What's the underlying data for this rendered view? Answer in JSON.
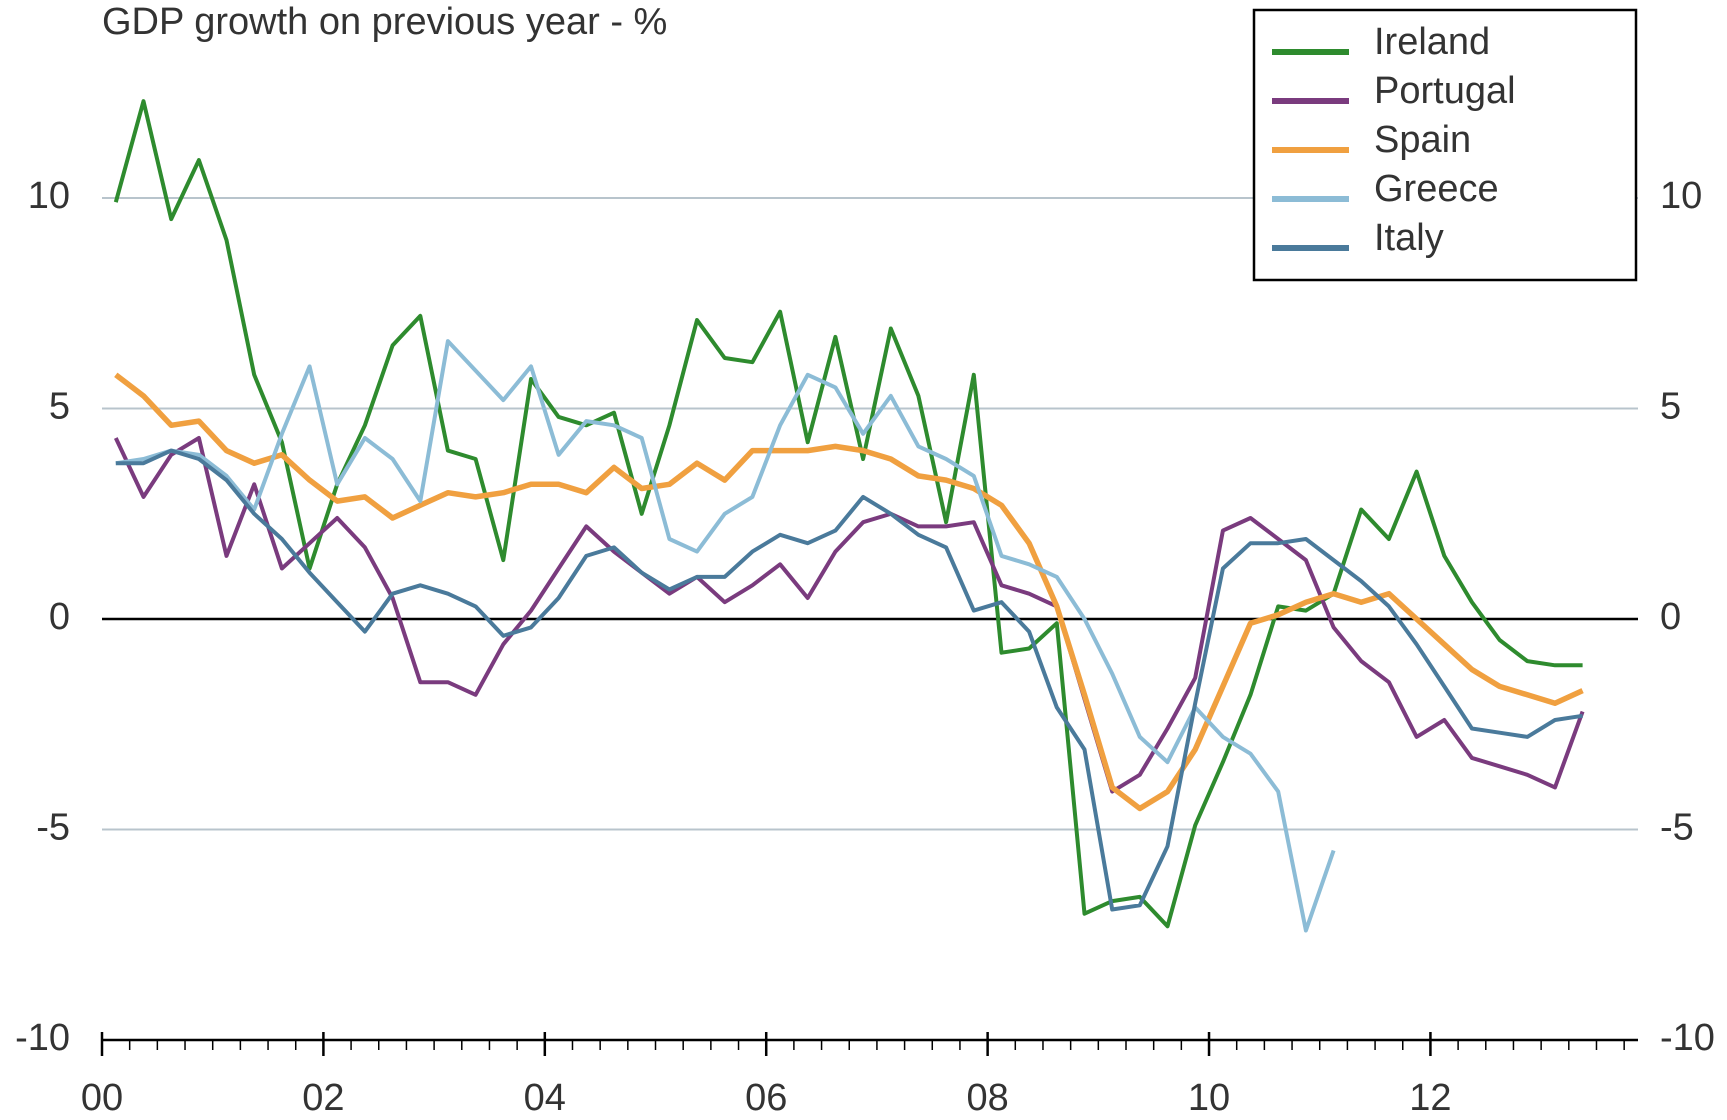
{
  "chart_data": {
    "type": "line",
    "title": "GDP growth on previous year - %",
    "x": [
      2000.125,
      2000.375,
      2000.625,
      2000.875,
      2001.125,
      2001.375,
      2001.625,
      2001.875,
      2002.125,
      2002.375,
      2002.625,
      2002.875,
      2003.125,
      2003.375,
      2003.625,
      2003.875,
      2004.125,
      2004.375,
      2004.625,
      2004.875,
      2005.125,
      2005.375,
      2005.625,
      2005.875,
      2006.125,
      2006.375,
      2006.625,
      2006.875,
      2007.125,
      2007.375,
      2007.625,
      2007.875,
      2008.125,
      2008.375,
      2008.625,
      2008.875,
      2009.125,
      2009.375,
      2009.625,
      2009.875,
      2010.125,
      2010.375,
      2010.625,
      2010.875,
      2011.125,
      2011.375,
      2011.625,
      2011.875,
      2012.125,
      2012.375,
      2012.625,
      2012.875,
      2013.125,
      2013.375
    ],
    "series": [
      {
        "name": "Ireland",
        "color": "#2e8b2e",
        "values": [
          9.9,
          12.3,
          9.5,
          10.9,
          9.0,
          5.8,
          4.2,
          1.2,
          3.2,
          4.6,
          6.5,
          7.2,
          4.0,
          3.8,
          1.4,
          5.7,
          4.8,
          4.6,
          4.9,
          2.5,
          4.6,
          7.1,
          6.2,
          6.1,
          7.3,
          4.2,
          6.7,
          3.8,
          6.9,
          5.3,
          2.3,
          5.8,
          -0.8,
          -0.7,
          -0.1,
          -7.0,
          -6.7,
          -6.6,
          -7.3,
          -4.9,
          -3.4,
          -1.8,
          0.3,
          0.2,
          0.6,
          2.6,
          1.9,
          3.5,
          1.5,
          0.4,
          -0.5,
          -1.0,
          -1.1,
          -1.1
        ]
      },
      {
        "name": "Portugal",
        "color": "#7a3b7e",
        "values": [
          4.3,
          2.9,
          3.9,
          4.3,
          1.5,
          3.2,
          1.2,
          1.8,
          2.4,
          1.7,
          0.5,
          -1.5,
          -1.5,
          -1.8,
          -0.6,
          0.2,
          1.2,
          2.2,
          1.6,
          1.1,
          0.6,
          1.0,
          0.4,
          0.8,
          1.3,
          0.5,
          1.6,
          2.3,
          2.5,
          2.2,
          2.2,
          2.3,
          0.8,
          0.6,
          0.3,
          -1.9,
          -4.1,
          -3.7,
          -2.6,
          -1.4,
          2.1,
          2.4,
          1.9,
          1.4,
          -0.2,
          -1.0,
          -1.5,
          -2.8,
          -2.4,
          -3.3,
          -3.5,
          -3.7,
          -4.0,
          -2.2
        ]
      },
      {
        "name": "Spain",
        "color": "#f0a040",
        "values": [
          5.8,
          5.3,
          4.6,
          4.7,
          4.0,
          3.7,
          3.9,
          3.3,
          2.8,
          2.9,
          2.4,
          2.7,
          3.0,
          2.9,
          3.0,
          3.2,
          3.2,
          3.0,
          3.6,
          3.1,
          3.2,
          3.7,
          3.3,
          4.0,
          4.0,
          4.0,
          4.1,
          4.0,
          3.8,
          3.4,
          3.3,
          3.1,
          2.7,
          1.8,
          0.3,
          -1.8,
          -4.0,
          -4.5,
          -4.1,
          -3.1,
          -1.6,
          -0.1,
          0.1,
          0.4,
          0.6,
          0.4,
          0.6,
          0.0,
          -0.6,
          -1.2,
          -1.6,
          -1.8,
          -2.0,
          -1.7
        ]
      },
      {
        "name": "Greece",
        "color": "#8cbcd6",
        "values": [
          3.7,
          3.8,
          4.0,
          3.9,
          3.4,
          2.6,
          4.4,
          6.0,
          3.2,
          4.3,
          3.8,
          2.8,
          6.6,
          5.9,
          5.2,
          6.0,
          3.9,
          4.7,
          4.6,
          4.3,
          1.9,
          1.6,
          2.5,
          2.9,
          4.6,
          5.8,
          5.5,
          4.4,
          5.3,
          4.1,
          3.8,
          3.4,
          1.5,
          1.3,
          1.0,
          0.0,
          -1.3,
          -2.8,
          -3.4,
          -2.1,
          -2.8,
          -3.2,
          -4.1,
          -7.4,
          -5.5,
          null,
          null,
          null,
          null,
          null,
          null,
          null,
          null,
          null
        ]
      },
      {
        "name": "Italy",
        "color": "#4a7a9b",
        "values": [
          3.7,
          3.7,
          4.0,
          3.8,
          3.3,
          2.5,
          1.9,
          1.1,
          0.4,
          -0.3,
          0.6,
          0.8,
          0.6,
          0.3,
          -0.4,
          -0.2,
          0.5,
          1.5,
          1.7,
          1.1,
          0.7,
          1.0,
          1.0,
          1.6,
          2.0,
          1.8,
          2.1,
          2.9,
          2.5,
          2.0,
          1.7,
          0.2,
          0.4,
          -0.3,
          -2.1,
          -3.1,
          -6.9,
          -6.8,
          -5.4,
          -2.0,
          1.2,
          1.8,
          1.8,
          1.9,
          1.4,
          0.9,
          0.3,
          -0.6,
          -1.6,
          -2.6,
          -2.7,
          -2.8,
          -2.4,
          -2.3
        ]
      }
    ],
    "xlim": [
      2000,
      2013.875
    ],
    "xticks": [
      {
        "value": 2000,
        "label": "00"
      },
      {
        "value": 2002,
        "label": "02"
      },
      {
        "value": 2004,
        "label": "04"
      },
      {
        "value": 2006,
        "label": "06"
      },
      {
        "value": 2008,
        "label": "08"
      },
      {
        "value": 2010,
        "label": "10"
      },
      {
        "value": 2012,
        "label": "12"
      }
    ],
    "ylim": [
      -10,
      10
    ],
    "yticks": [
      -10,
      -5,
      0,
      5,
      10
    ],
    "grid": true,
    "legend": "upper right"
  }
}
